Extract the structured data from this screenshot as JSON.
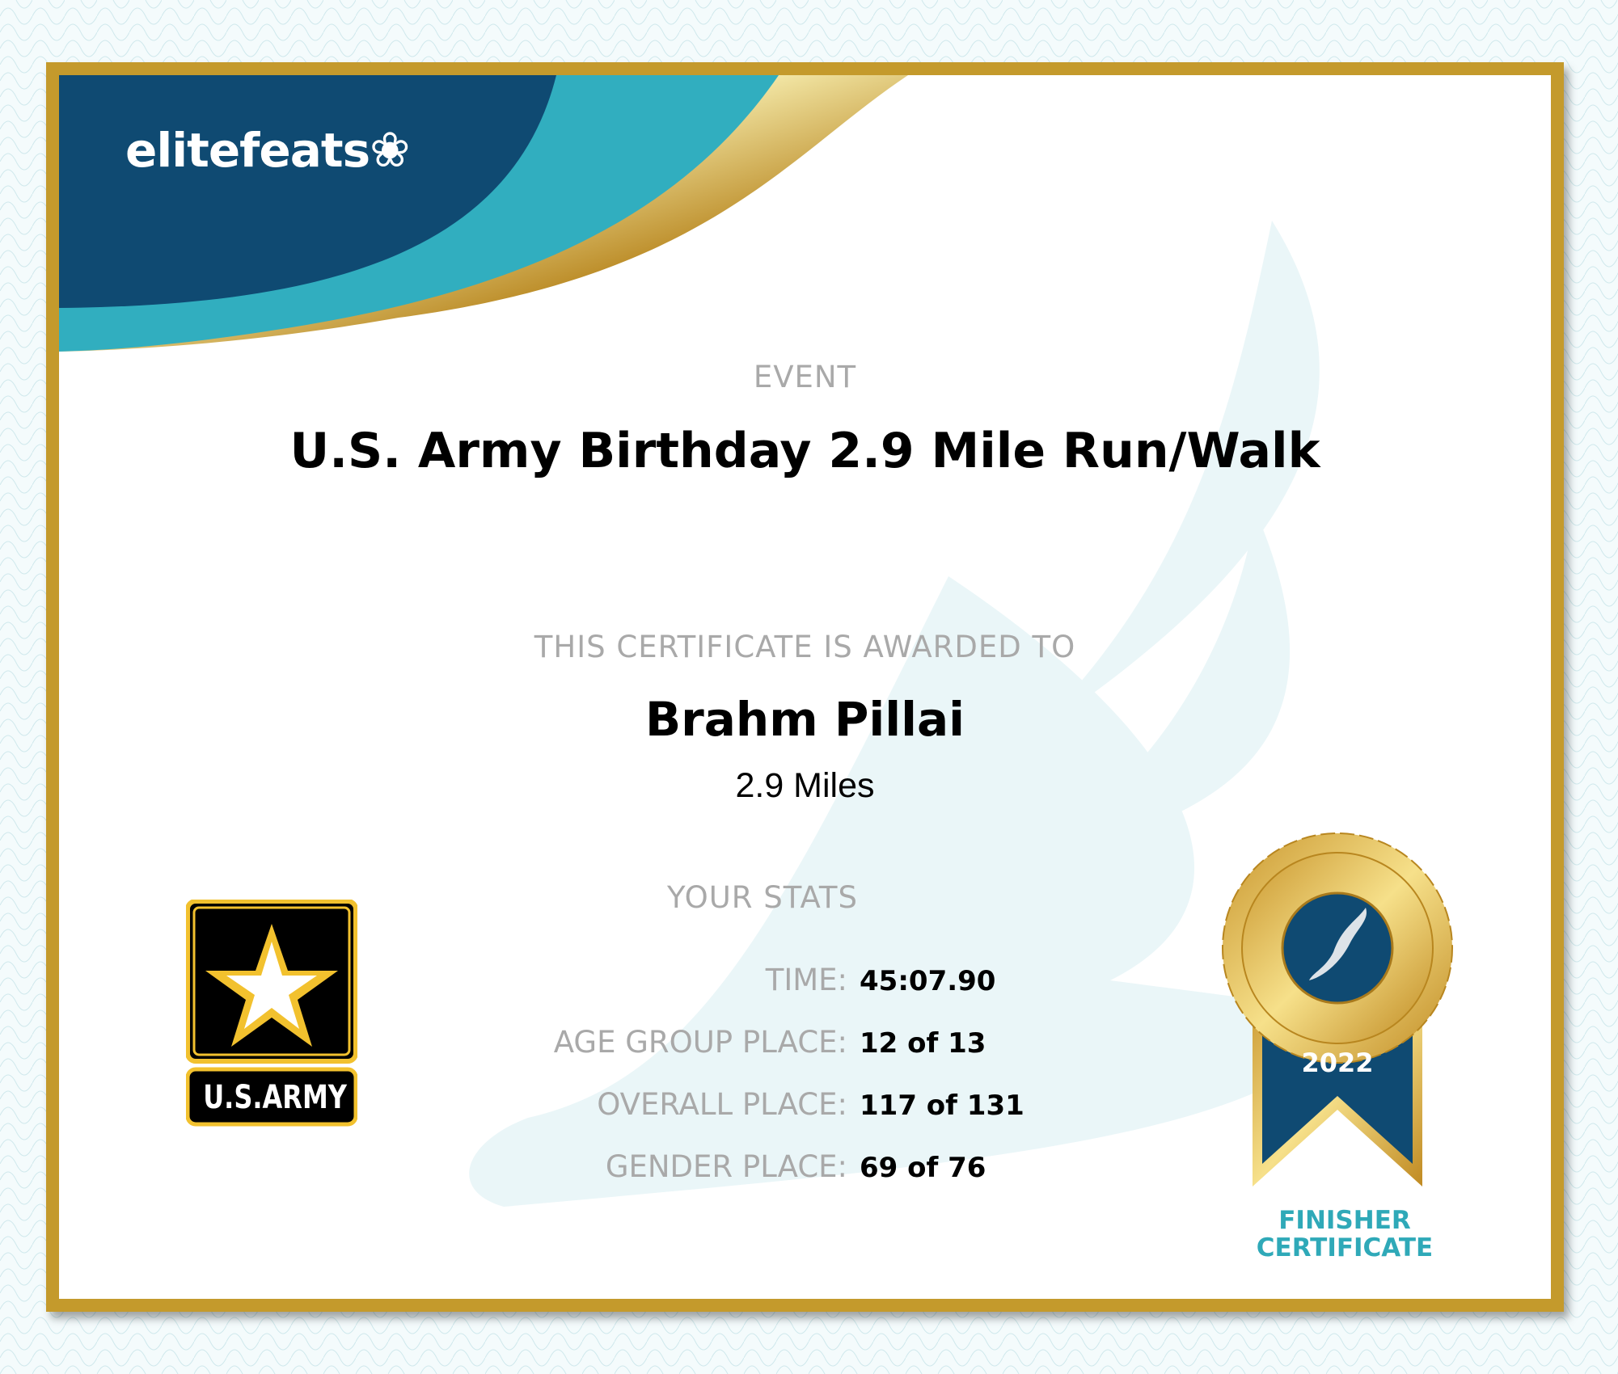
{
  "brand": {
    "logo_text": "elitefeats",
    "colors": {
      "navy": "#0f4a72",
      "teal": "#31aebf",
      "gold": "#c49a2c"
    }
  },
  "event": {
    "label": "EVENT",
    "title": "U.S. Army Birthday 2.9 Mile Run/Walk"
  },
  "award": {
    "label": "THIS CERTIFICATE IS AWARDED TO",
    "name": "Brahm Pillai",
    "distance": "2.9 Miles"
  },
  "stats": {
    "title": "YOUR STATS",
    "rows": [
      {
        "label": "TIME:",
        "value": "45:07.90"
      },
      {
        "label": "AGE GROUP PLACE:",
        "value": "12 of 13"
      },
      {
        "label": "OVERALL PLACE:",
        "value": "117 of 131"
      },
      {
        "label": "GENDER PLACE:",
        "value": "69 of 76"
      }
    ]
  },
  "sponsor_logo": {
    "text": "U.S.ARMY",
    "icon": "star-icon"
  },
  "badge": {
    "year": "2022",
    "line1": "FINISHER",
    "line2": "CERTIFICATE",
    "icon": "winged-foot-icon"
  }
}
